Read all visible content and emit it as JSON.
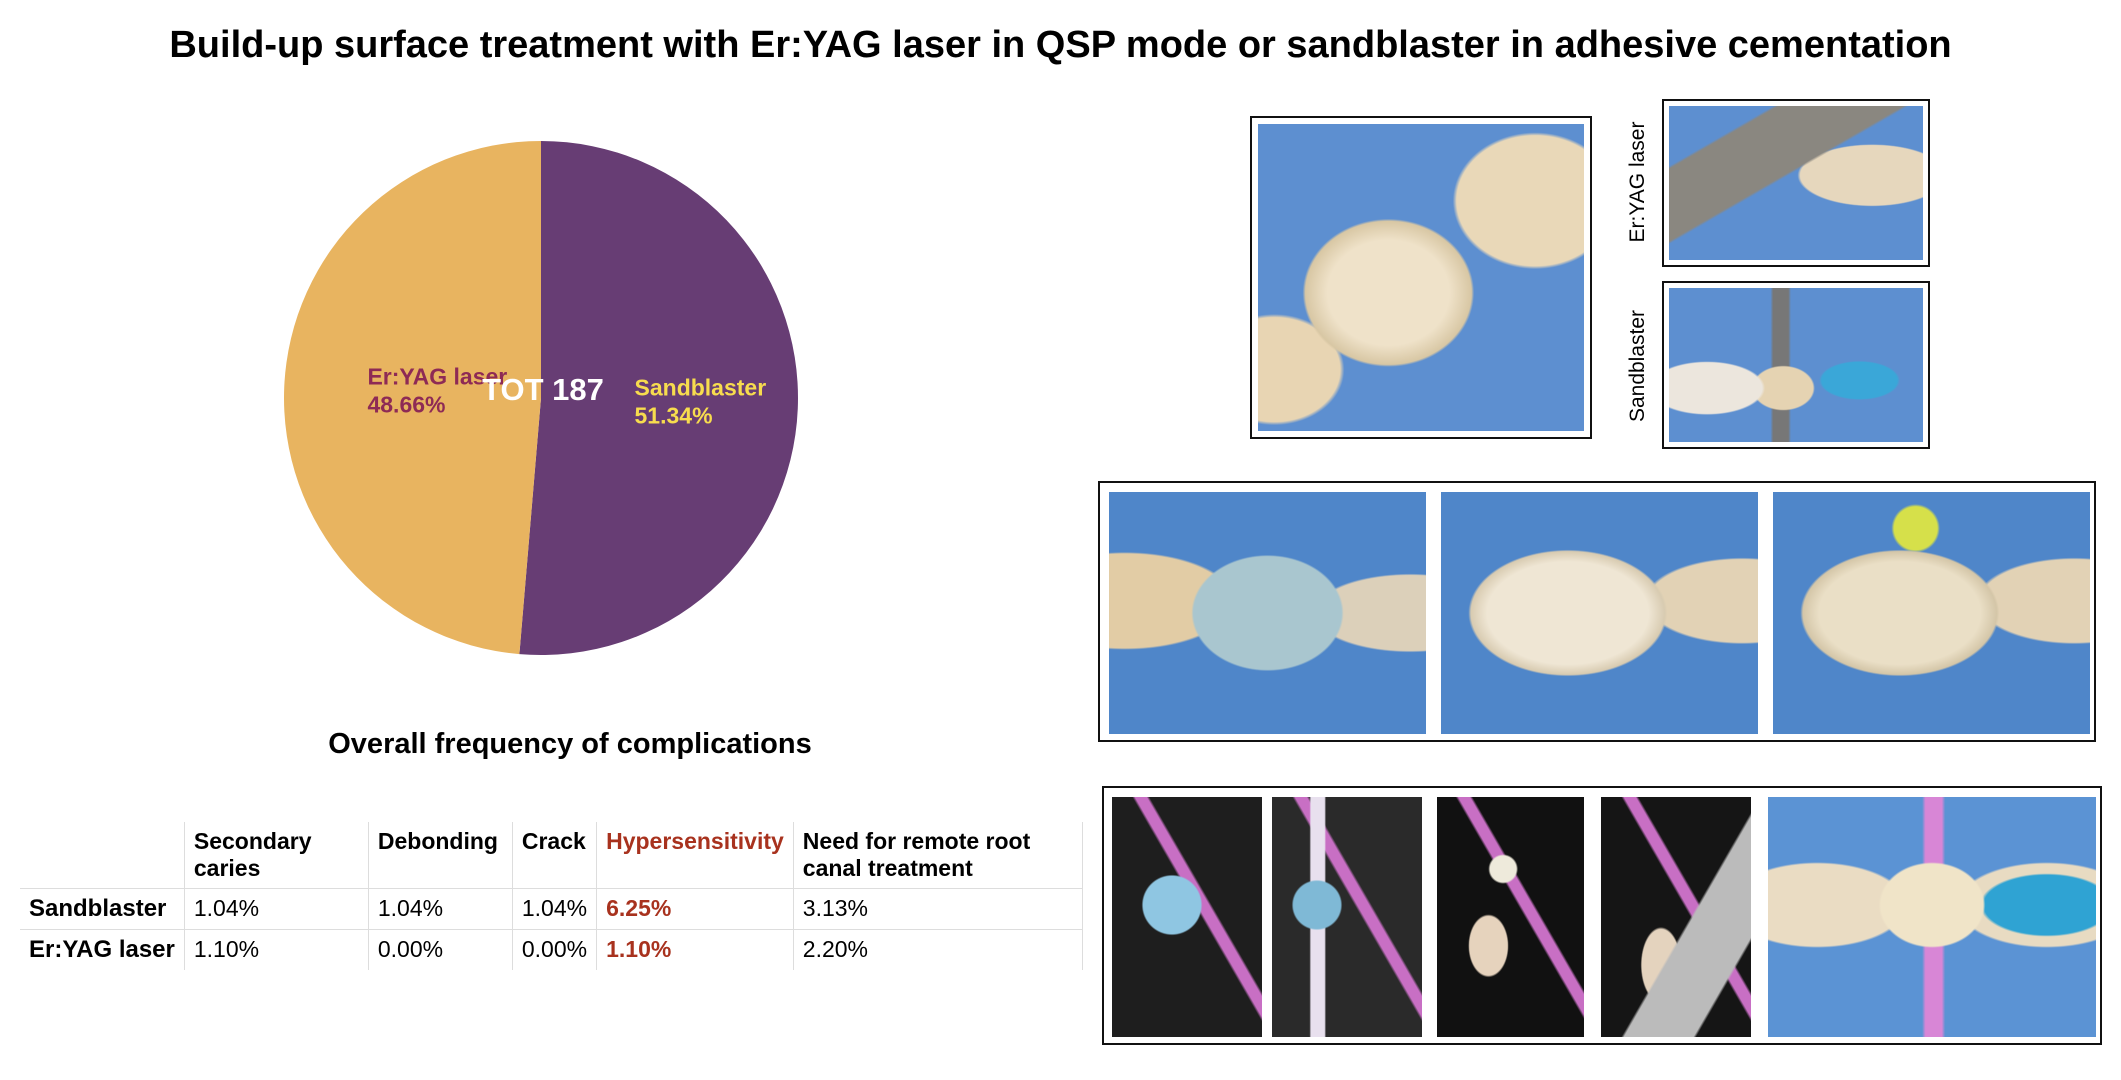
{
  "chart_data": {
    "type": "pie",
    "title": "Build-up surface treatment with Er:YAG laser in QSP mode or sandblaster in adhesive cementation",
    "center_label": "TOT 187",
    "categories": [
      "Sandblaster",
      "Er:YAG laser"
    ],
    "values": [
      51.34,
      48.66
    ],
    "value_labels": [
      "51.34%",
      "48.66%"
    ],
    "colors": [
      "#673d74",
      "#e8b460"
    ],
    "label_colors": [
      "#f7dc4e",
      "#8e2a55"
    ]
  },
  "table": {
    "title": "Overall frequency of complications",
    "columns": [
      "Secondary caries",
      "Debonding",
      "Crack",
      "Hypersensitivity",
      "Need for remote root canal treatment"
    ],
    "rows": [
      [
        "Sandblaster",
        "1.04%",
        "1.04%",
        "1.04%",
        "6.25%",
        "3.13%"
      ],
      [
        "Er:YAG laser",
        "1.10%",
        "0.00%",
        "0.00%",
        "1.10%",
        "2.20%"
      ]
    ]
  },
  "photos": {
    "labels": [
      "Er:YAG laser",
      "Sandblaster"
    ]
  }
}
